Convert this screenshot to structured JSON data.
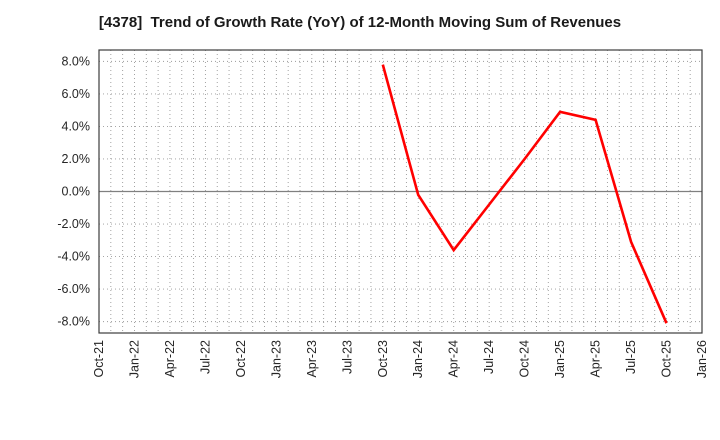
{
  "title": "[4378]  Trend of Growth Rate (YoY) of 12-Month Moving Sum of Revenues",
  "chart_data": {
    "type": "line",
    "title": "[4378]  Trend of Growth Rate (YoY) of 12-Month Moving Sum of Revenues",
    "xlabel": "",
    "ylabel": "",
    "categories": [
      "Oct-21",
      "Jan-22",
      "Apr-22",
      "Jul-22",
      "Oct-22",
      "Jan-23",
      "Apr-23",
      "Jul-23",
      "Oct-23",
      "Jan-24",
      "Apr-24",
      "Jul-24",
      "Oct-24",
      "Jan-25",
      "Apr-25",
      "Jul-25",
      "Oct-25",
      "Jan-26"
    ],
    "series": [
      {
        "name": "Growth Rate (YoY) of 12-Month Moving Sum of Revenues",
        "color": "#ff0000",
        "values": [
          null,
          null,
          null,
          null,
          null,
          null,
          null,
          null,
          7.8,
          -0.2,
          -3.6,
          -0.8,
          2.0,
          4.9,
          4.4,
          -3.1,
          -8.1,
          null
        ]
      }
    ],
    "ylim": [
      -8.7,
      8.7
    ],
    "ytick_step": 2,
    "ytick_min": -8,
    "ytick_max": 8,
    "ytick_suffix": "%",
    "grid": true,
    "minor_x_divisions_per_interval": 3,
    "legend_position": "none",
    "zero_line": true
  },
  "colors": {
    "series_line": "#ff0000",
    "grid_dotted": "#999999",
    "zero_line": "#808080",
    "frame": "#3c3c3c",
    "tick_label": "#262626",
    "title_text": "#1a1a1a",
    "background": "#ffffff"
  }
}
